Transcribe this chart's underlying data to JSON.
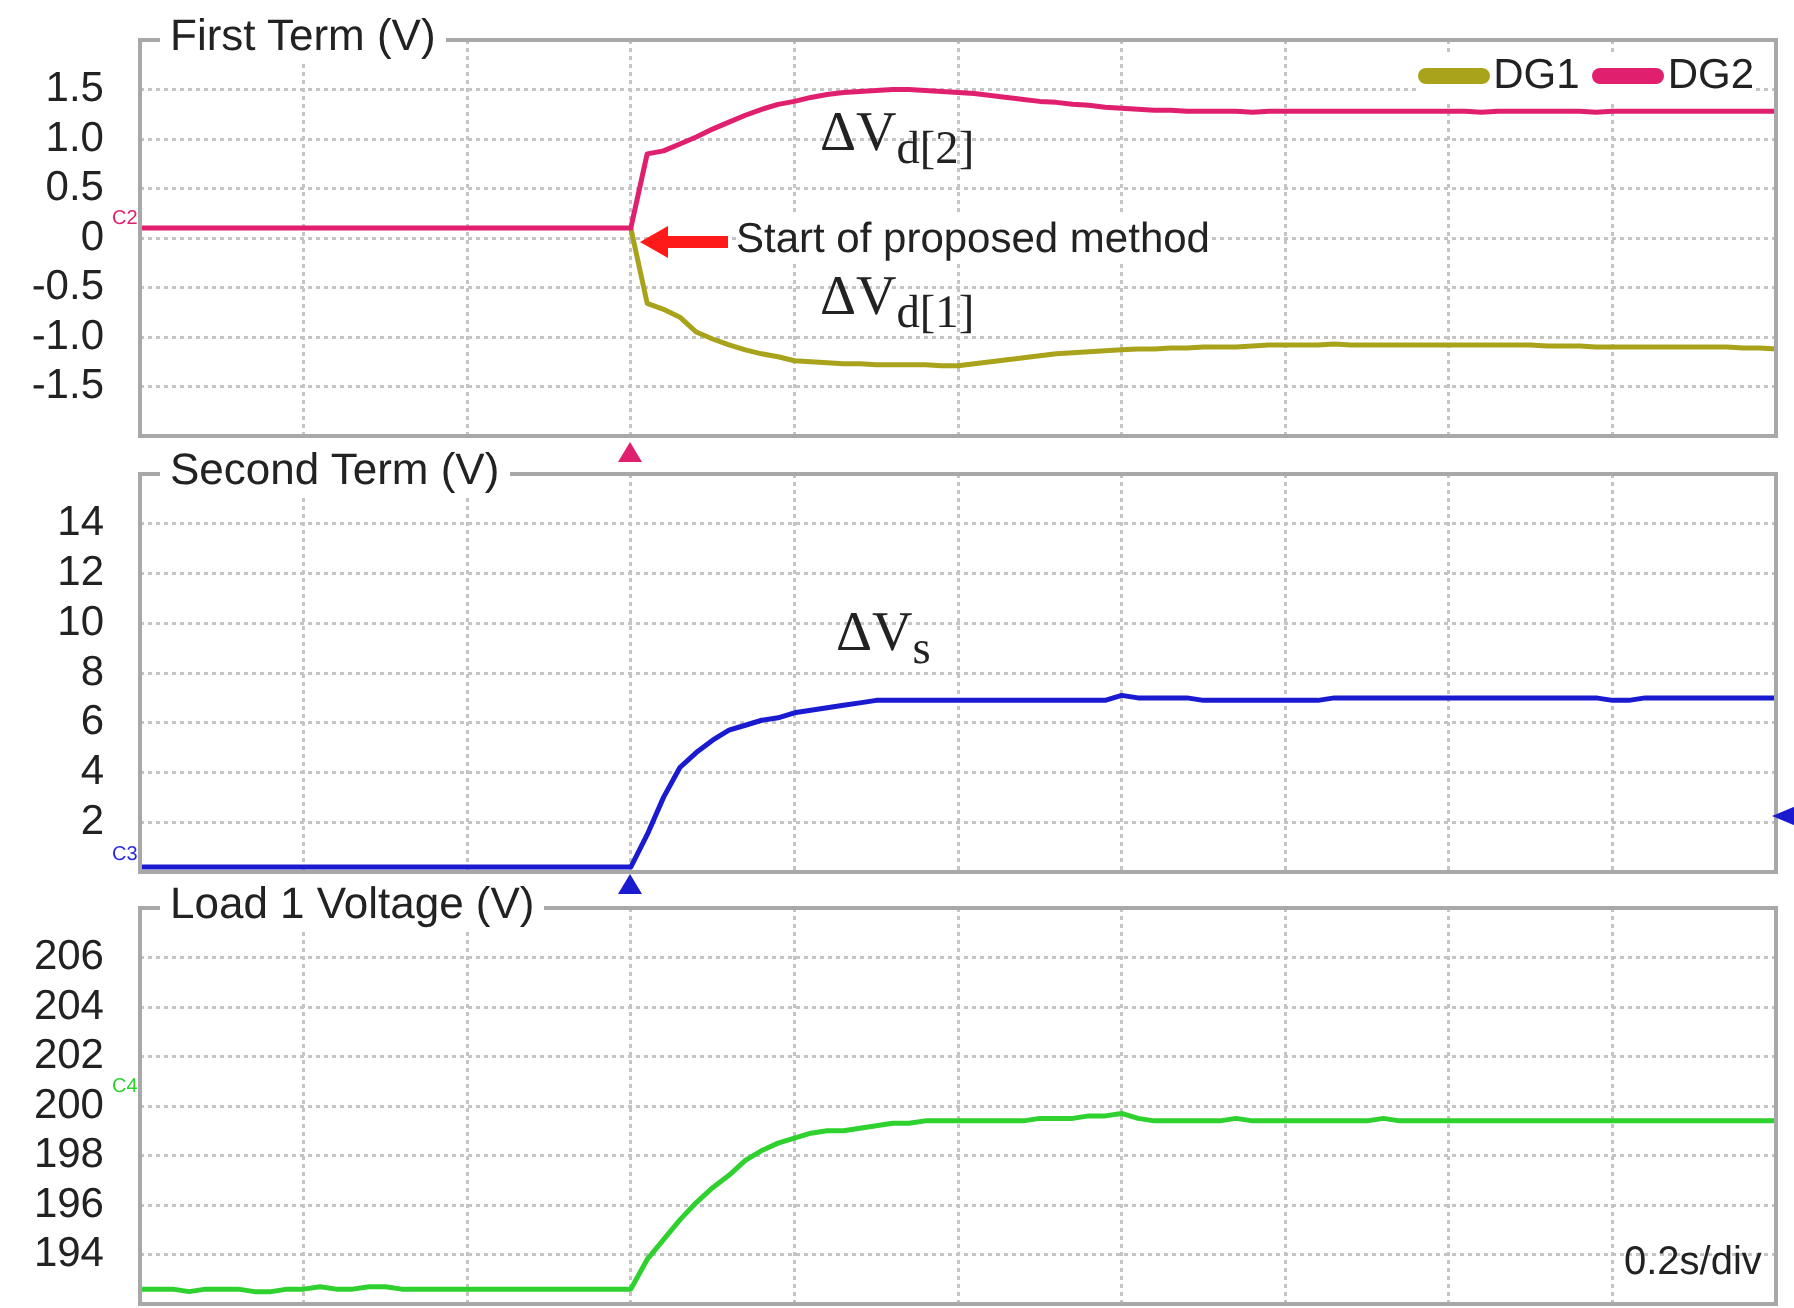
{
  "chart_data": [
    {
      "type": "line",
      "title": "First Term (V)",
      "categories": [
        null,
        null,
        null,
        null,
        null,
        null,
        null,
        null,
        null,
        null,
        null,
        null,
        null,
        null,
        null,
        null,
        null,
        null,
        null,
        null,
        null,
        null,
        null,
        null,
        null,
        null,
        null,
        null,
        null,
        null,
        null,
        null,
        null,
        null,
        null,
        null,
        null,
        null,
        null,
        null,
        null,
        null,
        null,
        null,
        null,
        null,
        null,
        null,
        null,
        null,
        null,
        null,
        null,
        null,
        null,
        null,
        null,
        null,
        null,
        null,
        null,
        null,
        null,
        null,
        null,
        null,
        null,
        null,
        null,
        null,
        null,
        null,
        null,
        null,
        null,
        null,
        null,
        null,
        null,
        null,
        null,
        null,
        null,
        null,
        null,
        null,
        null,
        null,
        null,
        null,
        null,
        null,
        null,
        null,
        null,
        null,
        null,
        null,
        null,
        null,
        null
      ],
      "series": [
        {
          "name": "DG1",
          "color": "#a9a31c",
          "values": [
            null,
            null,
            null,
            null,
            null,
            null,
            null,
            null,
            null,
            null,
            null,
            null,
            null,
            null,
            null,
            null,
            null,
            null,
            null,
            null,
            null,
            null,
            null,
            null,
            null,
            null,
            null,
            null,
            null,
            null,
            0.1,
            -0.66,
            -0.72,
            -0.8,
            -0.95,
            -1.02,
            -1.08,
            -1.13,
            -1.17,
            -1.2,
            -1.24,
            -1.25,
            -1.26,
            -1.27,
            -1.27,
            -1.28,
            -1.28,
            -1.28,
            -1.28,
            -1.29,
            -1.29,
            -1.27,
            -1.25,
            -1.23,
            -1.21,
            -1.19,
            -1.17,
            -1.16,
            -1.15,
            -1.14,
            -1.13,
            -1.12,
            -1.12,
            -1.11,
            -1.11,
            -1.1,
            -1.1,
            -1.1,
            -1.09,
            -1.08,
            -1.08,
            -1.08,
            -1.08,
            -1.07,
            -1.08,
            -1.08,
            -1.08,
            -1.08,
            -1.08,
            -1.08,
            -1.08,
            -1.08,
            -1.08,
            -1.08,
            -1.08,
            -1.08,
            -1.09,
            -1.09,
            -1.09,
            -1.1,
            -1.1,
            -1.1,
            -1.1,
            -1.1,
            -1.1,
            -1.1,
            -1.1,
            -1.1,
            -1.11,
            -1.11,
            -1.12
          ]
        },
        {
          "name": "DG2",
          "color": "#e0206e",
          "values": [
            0.1,
            0.1,
            0.1,
            0.1,
            0.1,
            0.1,
            0.1,
            0.1,
            0.1,
            0.1,
            0.1,
            0.1,
            0.1,
            0.1,
            0.1,
            0.1,
            0.1,
            0.1,
            0.1,
            0.1,
            0.1,
            0.1,
            0.1,
            0.1,
            0.1,
            0.1,
            0.1,
            0.1,
            0.1,
            0.1,
            0.1,
            0.85,
            0.88,
            0.95,
            1.02,
            1.1,
            1.17,
            1.24,
            1.3,
            1.35,
            1.38,
            1.42,
            1.45,
            1.47,
            1.48,
            1.49,
            1.5,
            1.5,
            1.49,
            1.48,
            1.47,
            1.46,
            1.44,
            1.42,
            1.4,
            1.38,
            1.37,
            1.35,
            1.34,
            1.32,
            1.31,
            1.3,
            1.29,
            1.29,
            1.28,
            1.28,
            1.28,
            1.28,
            1.27,
            1.28,
            1.28,
            1.28,
            1.28,
            1.28,
            1.28,
            1.28,
            1.28,
            1.28,
            1.28,
            1.28,
            1.28,
            1.28,
            1.27,
            1.28,
            1.28,
            1.28,
            1.28,
            1.28,
            1.28,
            1.27,
            1.28,
            1.28,
            1.28,
            1.28,
            1.28,
            1.28,
            1.28,
            1.28,
            1.28,
            1.28,
            1.28
          ]
        }
      ],
      "ylim": [
        -2,
        2
      ],
      "yticks": [
        -1.5,
        {
          "value": -1,
          "label": "-1.0"
        },
        -0.5,
        0,
        0.5,
        {
          "value": 1,
          "label": "1.0"
        },
        1.5
      ],
      "grid": true,
      "legend": "top right",
      "annotations": [
        "ΔV$_{d[2]}$",
        "Start of proposed method",
        "ΔV$_{d[1]}$",
        "C2"
      ]
    },
    {
      "type": "line",
      "title": "Second Term (V)",
      "categories": [
        null,
        null,
        null,
        null,
        null,
        null,
        null,
        null,
        null,
        null,
        null,
        null,
        null,
        null,
        null,
        null,
        null,
        null,
        null,
        null,
        null,
        null,
        null,
        null,
        null,
        null,
        null,
        null,
        null,
        null,
        null,
        null,
        null,
        null,
        null,
        null,
        null,
        null,
        null,
        null,
        null,
        null,
        null,
        null,
        null,
        null,
        null,
        null,
        null,
        null,
        null,
        null,
        null,
        null,
        null,
        null,
        null,
        null,
        null,
        null,
        null,
        null,
        null,
        null,
        null,
        null,
        null,
        null,
        null,
        null,
        null,
        null,
        null,
        null,
        null,
        null,
        null,
        null,
        null,
        null,
        null,
        null,
        null,
        null,
        null,
        null,
        null,
        null,
        null,
        null,
        null,
        null,
        null,
        null,
        null,
        null,
        null,
        null,
        null,
        null,
        null
      ],
      "series": [
        {
          "color": "#1a1ad0",
          "values": [
            0.2,
            0.2,
            0.2,
            0.2,
            0.2,
            0.2,
            0.2,
            0.2,
            0.2,
            0.2,
            0.2,
            0.2,
            0.2,
            0.2,
            0.2,
            0.2,
            0.2,
            0.2,
            0.2,
            0.2,
            0.2,
            0.2,
            0.2,
            0.2,
            0.2,
            0.2,
            0.2,
            0.2,
            0.2,
            0.2,
            0.2,
            1.5,
            3.0,
            4.2,
            4.8,
            5.3,
            5.7,
            5.9,
            6.1,
            6.2,
            6.4,
            6.5,
            6.6,
            6.7,
            6.8,
            6.9,
            6.9,
            6.9,
            6.9,
            6.9,
            6.9,
            6.9,
            6.9,
            6.9,
            6.9,
            6.9,
            6.9,
            6.9,
            6.9,
            6.9,
            7.1,
            7.0,
            7.0,
            7.0,
            7.0,
            6.9,
            6.9,
            6.9,
            6.9,
            6.9,
            6.9,
            6.9,
            6.9,
            7.0,
            7.0,
            7.0,
            7.0,
            7.0,
            7.0,
            7.0,
            7.0,
            7.0,
            7.0,
            7.0,
            7.0,
            7.0,
            7.0,
            7.0,
            7.0,
            7.0,
            6.9,
            6.9,
            7.0,
            7.0,
            7.0,
            7.0,
            7.0,
            7.0,
            7.0,
            7.0,
            7.0
          ]
        }
      ],
      "ylim": [
        0,
        16
      ],
      "yticks": [
        2,
        4,
        6,
        8,
        10,
        12,
        14
      ],
      "grid": true,
      "annotations": [
        "ΔV$_{s}$",
        "C3"
      ]
    },
    {
      "type": "line",
      "title": "Load 1 Voltage (V)",
      "categories": [
        null,
        null,
        null,
        null,
        null,
        null,
        null,
        null,
        null,
        null,
        null,
        null,
        null,
        null,
        null,
        null,
        null,
        null,
        null,
        null,
        null,
        null,
        null,
        null,
        null,
        null,
        null,
        null,
        null,
        null,
        null,
        null,
        null,
        null,
        null,
        null,
        null,
        null,
        null,
        null,
        null,
        null,
        null,
        null,
        null,
        null,
        null,
        null,
        null,
        null,
        null,
        null,
        null,
        null,
        null,
        null,
        null,
        null,
        null,
        null,
        null,
        null,
        null,
        null,
        null,
        null,
        null,
        null,
        null,
        null,
        null,
        null,
        null,
        null,
        null,
        null,
        null,
        null,
        null,
        null,
        null,
        null,
        null,
        null,
        null,
        null,
        null,
        null,
        null,
        null,
        null,
        null,
        null,
        null,
        null,
        null,
        null,
        null,
        null,
        null,
        null
      ],
      "series": [
        {
          "color": "#2ed12e",
          "values": [
            192.6,
            192.6,
            192.6,
            192.5,
            192.6,
            192.6,
            192.6,
            192.5,
            192.5,
            192.6,
            192.6,
            192.7,
            192.6,
            192.6,
            192.7,
            192.7,
            192.6,
            192.6,
            192.6,
            192.6,
            192.6,
            192.6,
            192.6,
            192.6,
            192.6,
            192.6,
            192.6,
            192.6,
            192.6,
            192.6,
            192.6,
            193.8,
            194.6,
            195.4,
            196.1,
            196.7,
            197.2,
            197.8,
            198.2,
            198.5,
            198.7,
            198.9,
            199.0,
            199.0,
            199.1,
            199.2,
            199.3,
            199.3,
            199.4,
            199.4,
            199.4,
            199.4,
            199.4,
            199.4,
            199.4,
            199.5,
            199.5,
            199.5,
            199.6,
            199.6,
            199.7,
            199.5,
            199.4,
            199.4,
            199.4,
            199.4,
            199.4,
            199.5,
            199.4,
            199.4,
            199.4,
            199.4,
            199.4,
            199.4,
            199.4,
            199.4,
            199.5,
            199.4,
            199.4,
            199.4,
            199.4,
            199.4,
            199.4,
            199.4,
            199.4,
            199.4,
            199.4,
            199.4,
            199.4,
            199.4,
            199.4,
            199.4,
            199.4,
            199.4,
            199.4,
            199.4,
            199.4,
            199.4,
            199.4,
            199.4,
            199.4
          ]
        }
      ],
      "ylim": [
        192,
        208
      ],
      "yticks": [
        194,
        196,
        198,
        200,
        202,
        204,
        206
      ],
      "grid": true,
      "annotations": [
        "C4",
        "0.2s/div"
      ]
    }
  ]
}
